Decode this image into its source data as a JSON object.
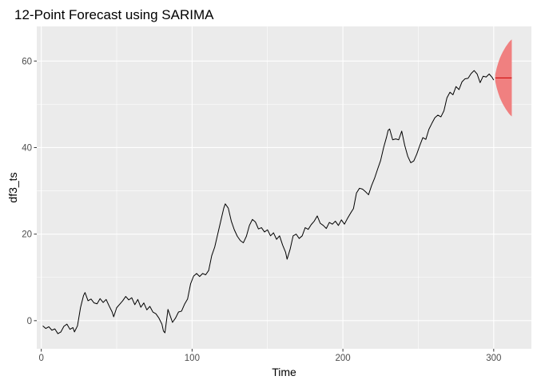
{
  "chart_data": {
    "type": "line",
    "title": "12-Point Forecast using SARIMA",
    "xlabel": "Time",
    "ylabel": "df3_ts",
    "xlim": [
      -3,
      325
    ],
    "ylim": [
      -6.5,
      68
    ],
    "x_ticks": [
      0,
      100,
      200,
      300
    ],
    "y_ticks": [
      0,
      20,
      40,
      60
    ],
    "grid": true,
    "legend": "none",
    "colors": {
      "panel": "#ebebeb",
      "grid": "#ffffff",
      "series": "#000000",
      "forecast_line": "#cc0000",
      "forecast_band": "#f08080"
    },
    "series": [
      {
        "values": [
          [
            1,
            -1.2
          ],
          [
            3,
            -1.8
          ],
          [
            5,
            -1.4
          ],
          [
            7,
            -2.2
          ],
          [
            9,
            -1.9
          ],
          [
            11,
            -3.0
          ],
          [
            13,
            -2.6
          ],
          [
            15,
            -1.3
          ],
          [
            17,
            -0.8
          ],
          [
            19,
            -2.0
          ],
          [
            21,
            -1.6
          ],
          [
            22,
            -2.6
          ],
          [
            24,
            -1.2
          ],
          [
            26,
            3.0
          ],
          [
            28,
            5.8
          ],
          [
            29,
            6.5
          ],
          [
            31,
            4.6
          ],
          [
            33,
            5.0
          ],
          [
            35,
            4.1
          ],
          [
            37,
            3.9
          ],
          [
            39,
            5.1
          ],
          [
            41,
            4.2
          ],
          [
            43,
            4.9
          ],
          [
            45,
            3.4
          ],
          [
            47,
            2.0
          ],
          [
            48,
            0.9
          ],
          [
            50,
            3.0
          ],
          [
            52,
            3.8
          ],
          [
            54,
            4.6
          ],
          [
            56,
            5.6
          ],
          [
            58,
            4.8
          ],
          [
            60,
            5.3
          ],
          [
            62,
            3.7
          ],
          [
            64,
            4.9
          ],
          [
            66,
            3.1
          ],
          [
            68,
            4.1
          ],
          [
            70,
            2.5
          ],
          [
            72,
            3.3
          ],
          [
            74,
            2.0
          ],
          [
            76,
            1.6
          ],
          [
            78,
            0.6
          ],
          [
            80,
            -0.8
          ],
          [
            81,
            -2.4
          ],
          [
            82,
            -2.8
          ],
          [
            84,
            2.6
          ],
          [
            86,
            0.6
          ],
          [
            87,
            -0.4
          ],
          [
            89,
            0.6
          ],
          [
            91,
            2.0
          ],
          [
            93,
            2.2
          ],
          [
            95,
            3.8
          ],
          [
            97,
            5.0
          ],
          [
            99,
            8.5
          ],
          [
            101,
            10.3
          ],
          [
            103,
            10.9
          ],
          [
            105,
            10.2
          ],
          [
            107,
            10.9
          ],
          [
            109,
            10.6
          ],
          [
            111,
            11.6
          ],
          [
            113,
            15.0
          ],
          [
            115,
            17.0
          ],
          [
            117,
            20.0
          ],
          [
            119,
            23.0
          ],
          [
            121,
            26.0
          ],
          [
            122,
            27.0
          ],
          [
            124,
            26.0
          ],
          [
            126,
            23.0
          ],
          [
            128,
            21.0
          ],
          [
            130,
            19.5
          ],
          [
            132,
            18.5
          ],
          [
            134,
            18.0
          ],
          [
            136,
            19.5
          ],
          [
            138,
            22.0
          ],
          [
            140,
            23.4
          ],
          [
            142,
            22.8
          ],
          [
            144,
            21.2
          ],
          [
            146,
            21.5
          ],
          [
            148,
            20.5
          ],
          [
            150,
            21.0
          ],
          [
            152,
            19.6
          ],
          [
            154,
            20.3
          ],
          [
            156,
            18.8
          ],
          [
            158,
            19.6
          ],
          [
            160,
            17.5
          ],
          [
            162,
            15.8
          ],
          [
            163,
            14.2
          ],
          [
            165,
            16.5
          ],
          [
            167,
            19.6
          ],
          [
            169,
            20.0
          ],
          [
            171,
            19.0
          ],
          [
            173,
            19.6
          ],
          [
            175,
            21.5
          ],
          [
            177,
            21.1
          ],
          [
            179,
            22.2
          ],
          [
            181,
            23.0
          ],
          [
            183,
            24.2
          ],
          [
            185,
            22.5
          ],
          [
            187,
            22.0
          ],
          [
            189,
            21.3
          ],
          [
            191,
            22.7
          ],
          [
            193,
            22.3
          ],
          [
            195,
            23.0
          ],
          [
            197,
            22.0
          ],
          [
            199,
            23.3
          ],
          [
            201,
            22.3
          ],
          [
            203,
            23.6
          ],
          [
            205,
            24.8
          ],
          [
            207,
            25.9
          ],
          [
            209,
            29.5
          ],
          [
            211,
            30.6
          ],
          [
            213,
            30.4
          ],
          [
            215,
            29.8
          ],
          [
            217,
            29.1
          ],
          [
            219,
            31.2
          ],
          [
            221,
            32.9
          ],
          [
            223,
            35.0
          ],
          [
            225,
            37.0
          ],
          [
            227,
            40.0
          ],
          [
            229,
            42.5
          ],
          [
            230,
            44.0
          ],
          [
            231,
            44.3
          ],
          [
            233,
            41.8
          ],
          [
            235,
            42.0
          ],
          [
            237,
            41.8
          ],
          [
            239,
            43.8
          ],
          [
            241,
            40.5
          ],
          [
            243,
            38.0
          ],
          [
            245,
            36.5
          ],
          [
            247,
            36.9
          ],
          [
            249,
            38.5
          ],
          [
            251,
            40.5
          ],
          [
            253,
            42.3
          ],
          [
            255,
            41.9
          ],
          [
            257,
            44.2
          ],
          [
            259,
            45.6
          ],
          [
            261,
            46.9
          ],
          [
            263,
            47.5
          ],
          [
            265,
            47.1
          ],
          [
            267,
            48.5
          ],
          [
            269,
            51.5
          ],
          [
            271,
            52.8
          ],
          [
            273,
            52.2
          ],
          [
            275,
            54.1
          ],
          [
            277,
            53.4
          ],
          [
            279,
            55.2
          ],
          [
            281,
            55.9
          ],
          [
            283,
            56.0
          ],
          [
            285,
            57.1
          ],
          [
            287,
            57.8
          ],
          [
            289,
            57.0
          ],
          [
            291,
            55.0
          ],
          [
            293,
            56.5
          ],
          [
            295,
            56.3
          ],
          [
            297,
            57.0
          ],
          [
            299,
            56.2
          ],
          [
            300,
            55.6
          ]
        ]
      }
    ],
    "forecast": {
      "x": [
        301,
        302,
        303,
        304,
        305,
        306,
        307,
        308,
        309,
        310,
        311,
        312
      ],
      "mean": [
        56.1,
        56.1,
        56.1,
        56.1,
        56.1,
        56.1,
        56.1,
        56.1,
        56.1,
        56.1,
        56.1,
        56.1
      ],
      "lower": [
        55.3,
        53.8,
        52.6,
        51.6,
        50.8,
        50.1,
        49.5,
        48.9,
        48.4,
        47.9,
        47.5,
        47.2
      ],
      "upper": [
        56.9,
        58.4,
        59.6,
        60.6,
        61.4,
        62.1,
        62.7,
        63.3,
        63.8,
        64.3,
        64.7,
        65.0
      ]
    }
  }
}
